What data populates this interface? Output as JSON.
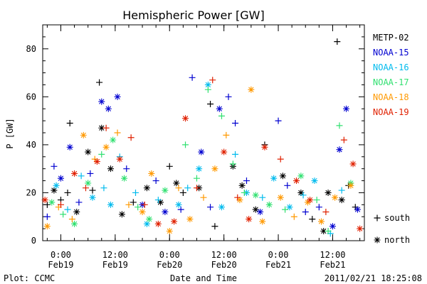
{
  "chart_data": {
    "type": "scatter",
    "title": "Hemispheric Power [GW]",
    "xlabel": "Date and Time",
    "ylabel": "P [GW]",
    "ylim": [
      0,
      90
    ],
    "yticks": [
      0,
      20,
      40,
      60,
      80
    ],
    "xlim": [
      "2011-02-18 20:00",
      "2011-02-21 19:00"
    ],
    "xticks": [
      {
        "time": "2011-02-19 00:00",
        "line1": "0:00",
        "line2": "Feb19"
      },
      {
        "time": "2011-02-19 12:00",
        "line1": "12:00",
        "line2": "Feb19"
      },
      {
        "time": "2011-02-20 00:00",
        "line1": "0:00",
        "line2": "Feb20"
      },
      {
        "time": "2011-02-20 12:00",
        "line1": "12:00",
        "line2": "Feb20"
      },
      {
        "time": "2011-02-21 00:00",
        "line1": "0:00",
        "line2": "Feb21"
      },
      {
        "time": "2011-02-21 12:00",
        "line1": "12:00",
        "line2": "Feb21"
      }
    ],
    "legend": {
      "placement": "right"
    },
    "marker_legend": [
      {
        "symbol": "+",
        "label": "south"
      },
      {
        "symbol": "*",
        "label": "north"
      }
    ],
    "series": [
      {
        "name": "METP-02",
        "color": "#000000",
        "points": [
          [
            "2011-02-18 21:00",
            15,
            "+"
          ],
          [
            "2011-02-18 22:30",
            21,
            "*"
          ],
          [
            "2011-02-19 00:00",
            17,
            "+"
          ],
          [
            "2011-02-19 01:30",
            20,
            "+"
          ],
          [
            "2011-02-19 02:00",
            49,
            "+"
          ],
          [
            "2011-02-19 03:30",
            12,
            "*"
          ],
          [
            "2011-02-19 06:00",
            37,
            "*"
          ],
          [
            "2011-02-19 07:00",
            21,
            "+"
          ],
          [
            "2011-02-19 08:30",
            66,
            "+"
          ],
          [
            "2011-02-19 09:00",
            47,
            "*"
          ],
          [
            "2011-02-19 11:00",
            30,
            "*"
          ],
          [
            "2011-02-19 13:30",
            11,
            "*"
          ],
          [
            "2011-02-19 16:00",
            16,
            "+"
          ],
          [
            "2011-02-19 19:00",
            22,
            "*"
          ],
          [
            "2011-02-19 22:00",
            16,
            "*"
          ],
          [
            "2011-02-20 00:00",
            31,
            "+"
          ],
          [
            "2011-02-20 01:30",
            24,
            "*"
          ],
          [
            "2011-02-20 03:00",
            20,
            "+"
          ],
          [
            "2011-02-20 06:30",
            22,
            "*"
          ],
          [
            "2011-02-20 09:00",
            57,
            "+"
          ],
          [
            "2011-02-20 10:00",
            6,
            "+"
          ],
          [
            "2011-02-20 14:00",
            31,
            "*"
          ],
          [
            "2011-02-20 16:00",
            23,
            "*"
          ],
          [
            "2011-02-20 19:00",
            13,
            "*"
          ],
          [
            "2011-02-20 21:00",
            40,
            "+"
          ],
          [
            "2011-02-21 01:00",
            27,
            "*"
          ],
          [
            "2011-02-21 05:00",
            20,
            "*"
          ],
          [
            "2011-02-21 07:30",
            9,
            "+"
          ],
          [
            "2011-02-21 10:00",
            4,
            "*"
          ],
          [
            "2011-02-21 11:00",
            20,
            "*"
          ],
          [
            "2011-02-21 13:00",
            83,
            "+"
          ],
          [
            "2011-02-21 14:00",
            17,
            "*"
          ],
          [
            "2011-02-21 15:30",
            23,
            "+"
          ],
          [
            "2011-02-21 17:00",
            14,
            "+"
          ]
        ]
      },
      {
        "name": "NOAA-15",
        "color": "#0000d0",
        "points": [
          [
            "2011-02-18 21:00",
            10,
            "+"
          ],
          [
            "2011-02-18 22:30",
            31,
            "+"
          ],
          [
            "2011-02-19 00:00",
            26,
            "*"
          ],
          [
            "2011-02-19 02:00",
            39,
            "*"
          ],
          [
            "2011-02-19 04:00",
            16,
            "+"
          ],
          [
            "2011-02-19 06:30",
            28,
            "+"
          ],
          [
            "2011-02-19 09:00",
            58,
            "*"
          ],
          [
            "2011-02-19 10:30",
            55,
            "*"
          ],
          [
            "2011-02-19 12:30",
            60,
            "*"
          ],
          [
            "2011-02-19 14:30",
            30,
            "+"
          ],
          [
            "2011-02-19 18:00",
            15,
            "*"
          ],
          [
            "2011-02-19 21:00",
            25,
            "+"
          ],
          [
            "2011-02-19 23:00",
            12,
            "*"
          ],
          [
            "2011-02-20 02:30",
            13,
            "+"
          ],
          [
            "2011-02-20 05:00",
            68,
            "+"
          ],
          [
            "2011-02-20 07:00",
            37,
            "*"
          ],
          [
            "2011-02-20 09:00",
            14,
            "+"
          ],
          [
            "2011-02-20 11:00",
            55,
            "*"
          ],
          [
            "2011-02-20 13:00",
            60,
            "+"
          ],
          [
            "2011-02-20 14:30",
            49,
            "+"
          ],
          [
            "2011-02-20 17:00",
            25,
            "+"
          ],
          [
            "2011-02-20 20:00",
            12,
            "*"
          ],
          [
            "2011-02-21 00:00",
            50,
            "+"
          ],
          [
            "2011-02-21 02:00",
            23,
            "+"
          ],
          [
            "2011-02-21 06:00",
            12,
            "+"
          ],
          [
            "2011-02-21 09:00",
            14,
            "+"
          ],
          [
            "2011-02-21 12:00",
            6,
            "*"
          ],
          [
            "2011-02-21 13:30",
            38,
            "*"
          ],
          [
            "2011-02-21 15:00",
            55,
            "*"
          ],
          [
            "2011-02-21 17:30",
            13,
            "*"
          ]
        ]
      },
      {
        "name": "NOAA-16",
        "color": "#00bbee",
        "points": [
          [
            "2011-02-18 23:00",
            23,
            "*"
          ],
          [
            "2011-02-19 01:30",
            13,
            "+"
          ],
          [
            "2011-02-19 04:30",
            27,
            "+"
          ],
          [
            "2011-02-19 07:00",
            18,
            "*"
          ],
          [
            "2011-02-19 09:30",
            22,
            "+"
          ],
          [
            "2011-02-19 11:00",
            15,
            "*"
          ],
          [
            "2011-02-19 13:00",
            35,
            "+"
          ],
          [
            "2011-02-19 16:30",
            20,
            "+"
          ],
          [
            "2011-02-19 19:00",
            7,
            "*"
          ],
          [
            "2011-02-19 21:30",
            17,
            "+"
          ],
          [
            "2011-02-20 02:00",
            15,
            "*"
          ],
          [
            "2011-02-20 04:00",
            22,
            "+"
          ],
          [
            "2011-02-20 06:30",
            30,
            "*"
          ],
          [
            "2011-02-20 08:30",
            65,
            "*"
          ],
          [
            "2011-02-20 11:30",
            14,
            "*"
          ],
          [
            "2011-02-20 14:30",
            36,
            "+"
          ],
          [
            "2011-02-20 17:00",
            20,
            "*"
          ],
          [
            "2011-02-20 20:30",
            18,
            "+"
          ],
          [
            "2011-02-20 23:00",
            26,
            "*"
          ],
          [
            "2011-02-21 02:30",
            14,
            "*"
          ],
          [
            "2011-02-21 05:30",
            19,
            "+"
          ],
          [
            "2011-02-21 08:00",
            25,
            "*"
          ],
          [
            "2011-02-21 11:30",
            3,
            "+"
          ],
          [
            "2011-02-21 14:00",
            21,
            "+"
          ]
        ]
      },
      {
        "name": "NOAA-17",
        "color": "#30e070",
        "points": [
          [
            "2011-02-18 22:00",
            16,
            "*"
          ],
          [
            "2011-02-19 00:30",
            11,
            "+"
          ],
          [
            "2011-02-19 03:00",
            7,
            "*"
          ],
          [
            "2011-02-19 06:00",
            24,
            "*"
          ],
          [
            "2011-02-19 09:00",
            36,
            "+"
          ],
          [
            "2011-02-19 11:30",
            42,
            "*"
          ],
          [
            "2011-02-19 14:00",
            26,
            "*"
          ],
          [
            "2011-02-19 17:00",
            14,
            "+"
          ],
          [
            "2011-02-19 19:30",
            9,
            "*"
          ],
          [
            "2011-02-19 23:00",
            21,
            "*"
          ],
          [
            "2011-02-20 03:30",
            40,
            "+"
          ],
          [
            "2011-02-20 06:00",
            26,
            "+"
          ],
          [
            "2011-02-20 08:30",
            63,
            "+"
          ],
          [
            "2011-02-20 11:30",
            52,
            "+"
          ],
          [
            "2011-02-20 14:00",
            32,
            "+"
          ],
          [
            "2011-02-20 16:30",
            20,
            "+"
          ],
          [
            "2011-02-20 19:00",
            19,
            "*"
          ],
          [
            "2011-02-20 22:00",
            15,
            "*"
          ],
          [
            "2011-02-21 01:30",
            13,
            "+"
          ],
          [
            "2011-02-21 05:00",
            27,
            "*"
          ],
          [
            "2011-02-21 08:30",
            17,
            "+"
          ],
          [
            "2011-02-21 11:00",
            4,
            "+"
          ],
          [
            "2011-02-21 13:30",
            48,
            "+"
          ],
          [
            "2011-02-21 16:00",
            24,
            "*"
          ]
        ]
      },
      {
        "name": "NOAA-18",
        "color": "#ff9900",
        "points": [
          [
            "2011-02-18 21:00",
            6,
            "*"
          ],
          [
            "2011-02-18 23:30",
            14,
            "+"
          ],
          [
            "2011-02-19 02:30",
            9,
            "+"
          ],
          [
            "2011-02-19 05:00",
            44,
            "*"
          ],
          [
            "2011-02-19 07:30",
            34,
            "+"
          ],
          [
            "2011-02-19 10:00",
            39,
            "*"
          ],
          [
            "2011-02-19 12:30",
            45,
            "+"
          ],
          [
            "2011-02-19 15:00",
            15,
            "+"
          ],
          [
            "2011-02-19 18:00",
            12,
            "*"
          ],
          [
            "2011-02-19 20:00",
            28,
            "*"
          ],
          [
            "2011-02-20 00:00",
            4,
            "*"
          ],
          [
            "2011-02-20 02:00",
            22,
            "+"
          ],
          [
            "2011-02-20 04:30",
            9,
            "*"
          ],
          [
            "2011-02-20 07:30",
            18,
            "+"
          ],
          [
            "2011-02-20 10:00",
            30,
            "*"
          ],
          [
            "2011-02-20 12:30",
            44,
            "+"
          ],
          [
            "2011-02-20 15:30",
            17,
            "*"
          ],
          [
            "2011-02-20 18:00",
            63,
            "*"
          ],
          [
            "2011-02-20 20:30",
            8,
            "*"
          ],
          [
            "2011-02-21 00:30",
            18,
            "*"
          ],
          [
            "2011-02-21 03:30",
            10,
            "+"
          ],
          [
            "2011-02-21 06:30",
            16,
            "*"
          ],
          [
            "2011-02-21 09:30",
            8,
            "*"
          ],
          [
            "2011-02-21 12:30",
            18,
            "*"
          ],
          [
            "2011-02-21 16:00",
            23,
            "*"
          ]
        ]
      },
      {
        "name": "NOAA-19",
        "color": "#e02000",
        "points": [
          [
            "2011-02-18 20:30",
            17,
            "*"
          ],
          [
            "2011-02-19 00:00",
            15,
            "+"
          ],
          [
            "2011-02-19 03:00",
            28,
            "*"
          ],
          [
            "2011-02-19 05:30",
            22,
            "+"
          ],
          [
            "2011-02-19 08:00",
            33,
            "*"
          ],
          [
            "2011-02-19 10:00",
            47,
            "+"
          ],
          [
            "2011-02-19 13:00",
            34,
            "*"
          ],
          [
            "2011-02-19 15:30",
            43,
            "+"
          ],
          [
            "2011-02-19 18:30",
            15,
            "+"
          ],
          [
            "2011-02-19 21:30",
            7,
            "*"
          ],
          [
            "2011-02-20 01:00",
            8,
            "*"
          ],
          [
            "2011-02-20 03:30",
            51,
            "*"
          ],
          [
            "2011-02-20 06:00",
            22,
            "+"
          ],
          [
            "2011-02-20 09:30",
            67,
            "+"
          ],
          [
            "2011-02-20 12:00",
            37,
            "*"
          ],
          [
            "2011-02-20 15:00",
            18,
            "+"
          ],
          [
            "2011-02-20 17:30",
            9,
            "*"
          ],
          [
            "2011-02-20 21:00",
            39,
            "*"
          ],
          [
            "2011-02-21 00:30",
            34,
            "+"
          ],
          [
            "2011-02-21 04:00",
            25,
            "*"
          ],
          [
            "2011-02-21 07:00",
            17,
            "*"
          ],
          [
            "2011-02-21 10:30",
            12,
            "+"
          ],
          [
            "2011-02-21 14:30",
            42,
            "+"
          ],
          [
            "2011-02-21 16:30",
            32,
            "*"
          ],
          [
            "2011-02-21 18:00",
            5,
            "*"
          ]
        ]
      }
    ]
  },
  "footer": {
    "left": "Plot: CCMC",
    "right": "2011/02/21 18:25:08"
  }
}
